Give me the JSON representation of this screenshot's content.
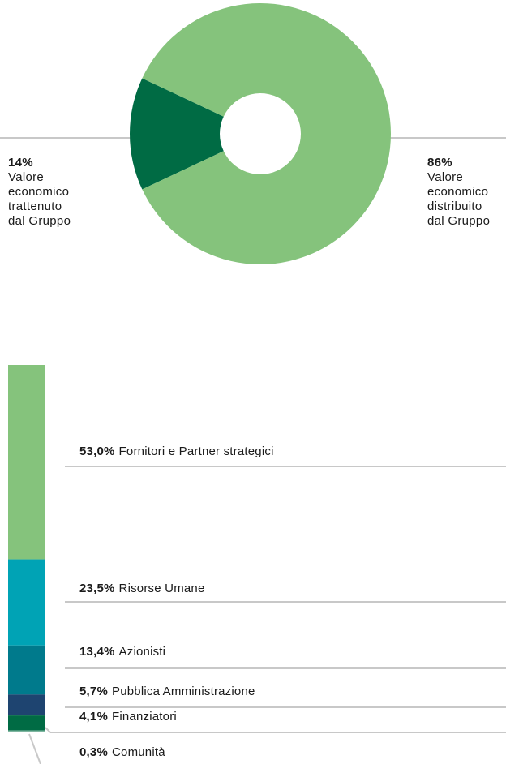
{
  "chart_data": [
    {
      "type": "pie",
      "categories": [
        "Valore economico trattenuto dal Gruppo",
        "Valore economico distribuito dal Gruppo"
      ],
      "values": [
        14,
        86
      ],
      "value_labels": [
        "14%",
        "86%"
      ],
      "colors": [
        "#006b44",
        "#85c37c"
      ]
    },
    {
      "type": "stacked-bar",
      "categories": [
        "Fornitori e Partner strategici",
        "Risorse Umane",
        "Azionisti",
        "Pubblica Amministrazione",
        "Finanziatori",
        "Comunità"
      ],
      "values": [
        53.0,
        23.5,
        13.4,
        5.7,
        4.1,
        0.3
      ],
      "value_labels": [
        "53,0%",
        "23,5%",
        "13,4%",
        "5,7%",
        "4,1%",
        "0,3%"
      ],
      "colors": [
        "#85c37c",
        "#00a3b5",
        "#007a8c",
        "#1e4470",
        "#006b44",
        "#7fb6a0"
      ]
    }
  ]
}
